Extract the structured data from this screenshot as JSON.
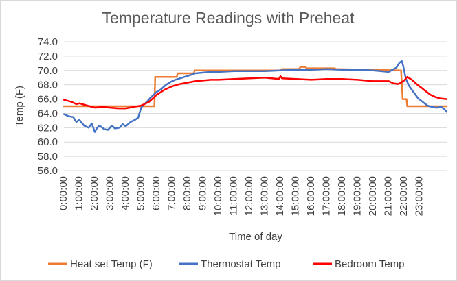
{
  "chart_data": {
    "type": "line",
    "title": "Temperature Readings with Preheat",
    "xlabel": "Time of day",
    "ylabel": "Temp (F)",
    "ylim": [
      56.0,
      74.0
    ],
    "y_ticks": [
      "56.0",
      "58.0",
      "60.0",
      "62.0",
      "64.0",
      "66.0",
      "68.0",
      "70.0",
      "72.0",
      "74.0"
    ],
    "xlim": [
      0,
      24.75
    ],
    "x_ticks": [
      "0:00:00",
      "1:00:00",
      "2:00:00",
      "3:00:00",
      "4:00:00",
      "5:00:00",
      "6:00:00",
      "7:00:00",
      "8:00:00",
      "9:00:00",
      "10:00:00",
      "11:00:00",
      "12:00:00",
      "13:00:00",
      "14:00:00",
      "15:00:00",
      "16:00:00",
      "17:00:00",
      "18:00:00",
      "19:00:00",
      "20:00:00",
      "21:00:00",
      "22:00:00",
      "23:00:00"
    ],
    "grid": "horizontal",
    "legend_position": "bottom",
    "series": [
      {
        "name": "Heat set Temp (F)",
        "color": "#ED7D31",
        "x": [
          0,
          5.85,
          5.9,
          7.3,
          7.35,
          8.4,
          8.45,
          14,
          14.1,
          15.2,
          15.3,
          15.6,
          15.7,
          17.5,
          17.6,
          21.8,
          21.9,
          22.15,
          22.2,
          24.75
        ],
        "y": [
          65.0,
          65.0,
          69.1,
          69.1,
          69.6,
          69.6,
          70.0,
          70.0,
          70.2,
          70.2,
          70.5,
          70.5,
          70.3,
          70.3,
          70.2,
          70.0,
          66.0,
          66.0,
          65.0,
          65.0
        ]
      },
      {
        "name": "Thermostat Temp",
        "color": "#4472C4",
        "x": [
          0,
          0.3,
          0.6,
          0.8,
          1.0,
          1.3,
          1.6,
          1.8,
          2.0,
          2.15,
          2.3,
          2.6,
          2.85,
          3.1,
          3.3,
          3.6,
          3.8,
          4.0,
          4.3,
          4.6,
          4.8,
          5.0,
          5.2,
          5.4,
          5.6,
          6.0,
          6.3,
          6.6,
          6.9,
          7.2,
          7.5,
          7.8,
          8.1,
          8.5,
          9.0,
          9.5,
          10,
          11,
          12,
          13,
          14,
          15,
          16,
          17,
          18,
          19,
          20,
          21,
          21.5,
          21.7,
          21.85,
          21.95,
          22.1,
          22.3,
          22.6,
          22.9,
          23.2,
          23.5,
          23.8,
          24.1,
          24.4,
          24.6,
          24.75
        ],
        "y": [
          63.9,
          63.6,
          63.5,
          62.8,
          63.1,
          62.3,
          62.0,
          62.6,
          61.4,
          62.0,
          62.3,
          61.8,
          61.7,
          62.3,
          61.9,
          62.0,
          62.5,
          62.2,
          62.8,
          63.1,
          63.4,
          64.8,
          65.3,
          65.7,
          66.2,
          67.0,
          67.4,
          68.0,
          68.4,
          68.7,
          68.9,
          69.1,
          69.3,
          69.6,
          69.7,
          69.8,
          69.8,
          69.9,
          69.9,
          69.9,
          70.0,
          70.1,
          70.1,
          70.2,
          70.1,
          70.1,
          70.0,
          69.8,
          70.4,
          71.1,
          71.3,
          70.5,
          68.9,
          67.9,
          67.0,
          66.1,
          65.6,
          65.1,
          64.9,
          64.8,
          64.9,
          64.6,
          64.2
        ]
      },
      {
        "name": "Bedroom Temp",
        "color": "#FF0000",
        "x": [
          0,
          0.5,
          0.8,
          1.0,
          1.5,
          2.0,
          2.5,
          3.0,
          3.5,
          4.0,
          4.5,
          5.0,
          5.5,
          6.0,
          6.5,
          7.0,
          7.5,
          8.0,
          8.5,
          9.0,
          9.5,
          10,
          11,
          12,
          13,
          13.9,
          14,
          14.1,
          15,
          16,
          17,
          18,
          19,
          20,
          21,
          21.3,
          21.6,
          21.8,
          22.0,
          22.2,
          22.5,
          22.8,
          23.1,
          23.4,
          23.7,
          24.0,
          24.3,
          24.75
        ],
        "y": [
          65.9,
          65.6,
          65.3,
          65.4,
          65.1,
          64.8,
          64.9,
          64.8,
          64.7,
          64.7,
          64.9,
          65.1,
          65.6,
          66.6,
          67.3,
          67.8,
          68.1,
          68.3,
          68.5,
          68.6,
          68.7,
          68.7,
          68.8,
          68.9,
          69.0,
          68.8,
          69.2,
          68.9,
          68.8,
          68.7,
          68.8,
          68.8,
          68.7,
          68.5,
          68.5,
          68.2,
          68.1,
          68.3,
          68.6,
          69.1,
          68.7,
          68.1,
          67.6,
          67.1,
          66.6,
          66.3,
          66.1,
          66.0
        ]
      }
    ]
  }
}
